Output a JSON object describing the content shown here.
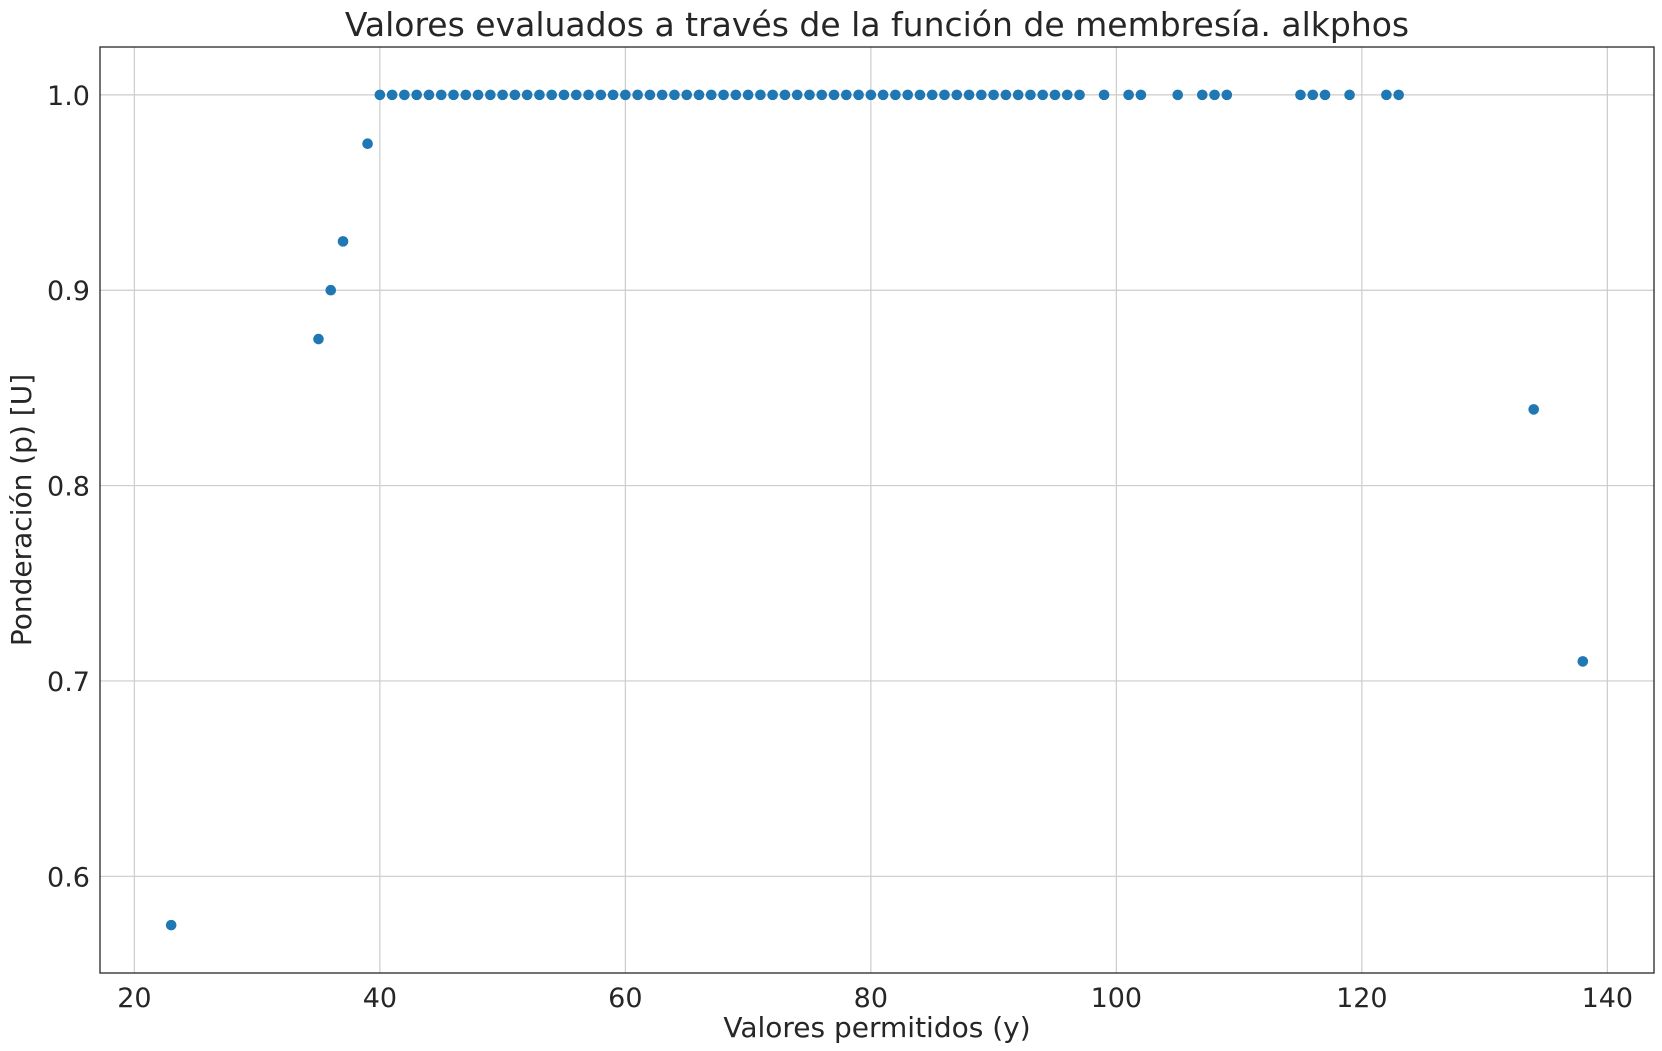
{
  "chart_data": {
    "type": "scatter",
    "title": "Valores evaluados a través de la función de membresía. alkphos",
    "xlabel": "Valores permitidos (y)",
    "ylabel": "Ponderación (p) [U]",
    "xlim": [
      17.2,
      143.8
    ],
    "ylim": [
      0.5505,
      1.0245
    ],
    "xticks": [
      20,
      40,
      60,
      80,
      100,
      120,
      140
    ],
    "xtick_labels": [
      "20",
      "40",
      "60",
      "80",
      "100",
      "120",
      "140"
    ],
    "yticks": [
      0.6,
      0.7,
      0.8,
      0.9,
      1.0
    ],
    "ytick_labels": [
      "0.6",
      "0.7",
      "0.8",
      "0.9",
      "1.0"
    ],
    "grid": true,
    "legend": "none",
    "colors": {
      "points": "#1f77b4",
      "grid": "#cccccc",
      "text": "#262626"
    },
    "series": [
      {
        "x": [
          23,
          35,
          36,
          37,
          39,
          40,
          41,
          42,
          43,
          44,
          45,
          46,
          47,
          48,
          49,
          50,
          51,
          52,
          53,
          54,
          55,
          56,
          57,
          58,
          59,
          60,
          61,
          62,
          63,
          64,
          65,
          66,
          67,
          68,
          69,
          70,
          71,
          72,
          73,
          74,
          75,
          76,
          77,
          78,
          79,
          80,
          81,
          82,
          83,
          84,
          85,
          86,
          87,
          88,
          89,
          90,
          91,
          92,
          93,
          94,
          95,
          96,
          97,
          99,
          101,
          102,
          105,
          107,
          108,
          109,
          115,
          116,
          117,
          119,
          122,
          123,
          134,
          138
        ],
        "y": [
          0.575,
          0.875,
          0.9,
          0.925,
          0.975,
          1.0,
          1.0,
          1.0,
          1.0,
          1.0,
          1.0,
          1.0,
          1.0,
          1.0,
          1.0,
          1.0,
          1.0,
          1.0,
          1.0,
          1.0,
          1.0,
          1.0,
          1.0,
          1.0,
          1.0,
          1.0,
          1.0,
          1.0,
          1.0,
          1.0,
          1.0,
          1.0,
          1.0,
          1.0,
          1.0,
          1.0,
          1.0,
          1.0,
          1.0,
          1.0,
          1.0,
          1.0,
          1.0,
          1.0,
          1.0,
          1.0,
          1.0,
          1.0,
          1.0,
          1.0,
          1.0,
          1.0,
          1.0,
          1.0,
          1.0,
          1.0,
          1.0,
          1.0,
          1.0,
          1.0,
          1.0,
          1.0,
          1.0,
          1.0,
          1.0,
          1.0,
          1.0,
          1.0,
          1.0,
          1.0,
          1.0,
          1.0,
          1.0,
          1.0,
          1.0,
          1.0,
          0.839,
          0.71
        ]
      }
    ]
  }
}
